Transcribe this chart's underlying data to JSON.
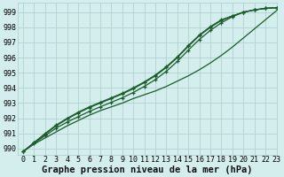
{
  "title": "Graphe pression niveau de la mer (hPa)",
  "bg_color": "#d4eeee",
  "grid_color": "#aacccc",
  "line_color": "#1a5c2a",
  "xlim": [
    -0.5,
    23
  ],
  "ylim": [
    989.6,
    999.6
  ],
  "yticks": [
    990,
    991,
    992,
    993,
    994,
    995,
    996,
    997,
    998,
    999
  ],
  "xticks": [
    0,
    1,
    2,
    3,
    4,
    5,
    6,
    7,
    8,
    9,
    10,
    11,
    12,
    13,
    14,
    15,
    16,
    17,
    18,
    19,
    20,
    21,
    22,
    23
  ],
  "series": [
    {
      "y": [
        989.8,
        990.3,
        990.7,
        991.1,
        991.5,
        991.85,
        992.2,
        992.5,
        992.75,
        993.0,
        993.3,
        993.55,
        993.8,
        994.1,
        994.45,
        994.8,
        995.2,
        995.65,
        996.15,
        996.7,
        997.3,
        997.9,
        998.5,
        999.1
      ],
      "marker": false,
      "linewidth": 0.9
    },
    {
      "y": [
        989.8,
        990.35,
        990.85,
        991.35,
        991.75,
        992.1,
        992.45,
        992.75,
        993.05,
        993.35,
        993.7,
        994.1,
        994.55,
        995.1,
        995.75,
        996.5,
        997.2,
        997.8,
        998.3,
        998.7,
        999.0,
        999.15,
        999.25,
        999.3
      ],
      "marker": true,
      "linewidth": 0.9
    },
    {
      "y": [
        989.8,
        990.4,
        990.95,
        991.5,
        991.95,
        992.35,
        992.7,
        993.0,
        993.3,
        993.6,
        993.95,
        994.35,
        994.8,
        995.35,
        996.0,
        996.75,
        997.45,
        998.0,
        998.45,
        998.75,
        999.0,
        999.15,
        999.25,
        999.3
      ],
      "marker": true,
      "linewidth": 0.9
    },
    {
      "y": [
        989.8,
        990.4,
        991.0,
        991.55,
        992.0,
        992.4,
        992.75,
        993.05,
        993.35,
        993.65,
        994.0,
        994.4,
        994.85,
        995.4,
        996.05,
        996.8,
        997.5,
        998.05,
        998.5,
        998.75,
        999.0,
        999.15,
        999.25,
        999.3
      ],
      "marker": true,
      "linewidth": 0.9
    }
  ],
  "title_fontsize": 7.5,
  "tick_fontsize": 6.0,
  "font_family": "monospace"
}
